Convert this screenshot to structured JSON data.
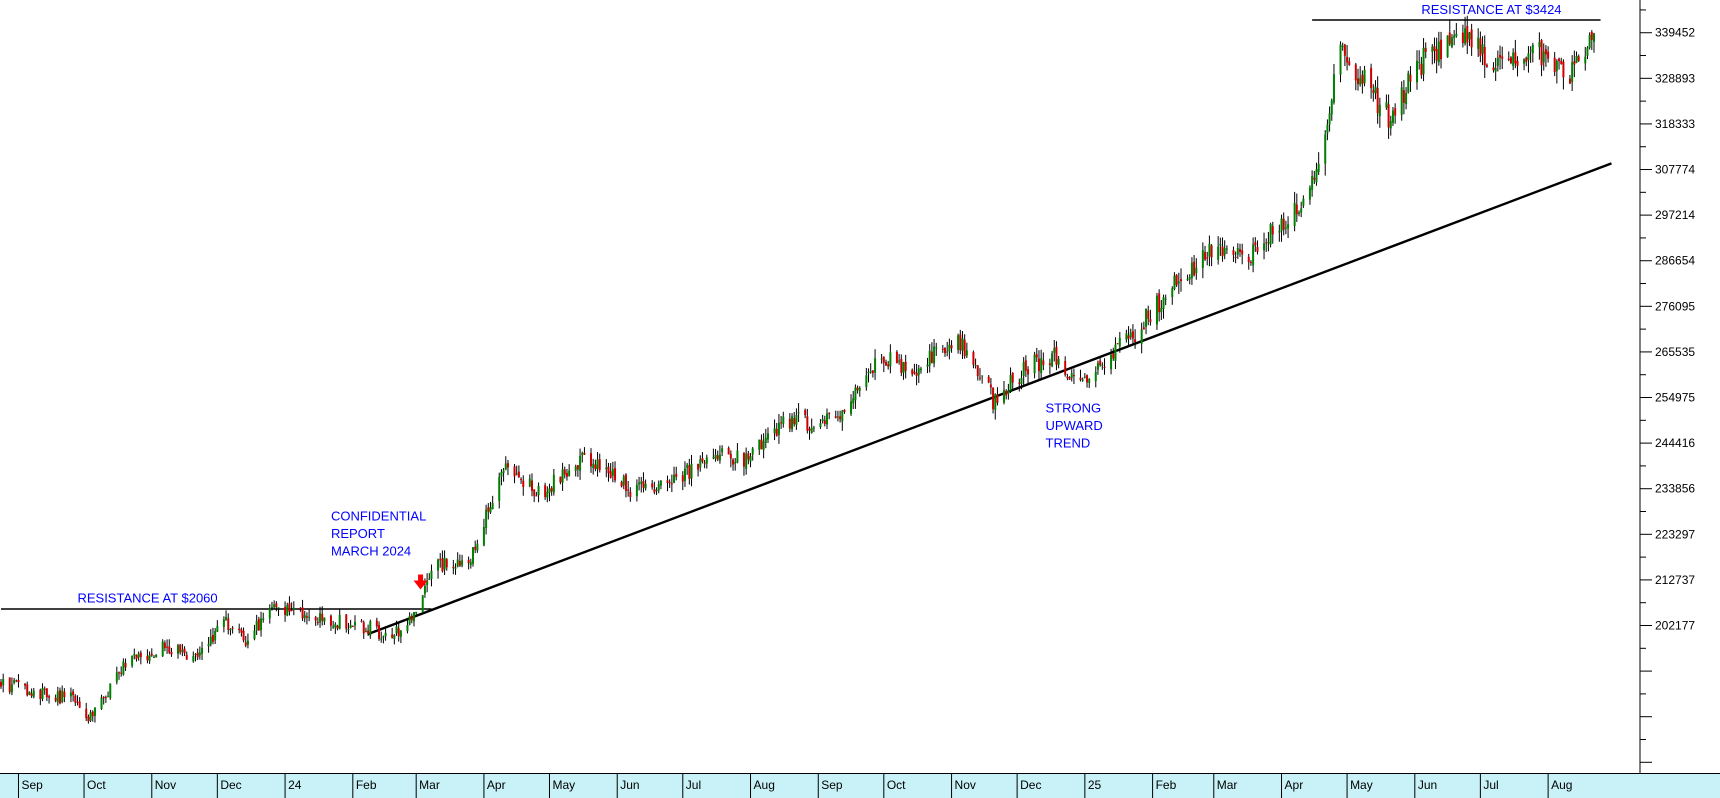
{
  "colors": {
    "up_candle": "#008000",
    "down_candle": "#cc0000",
    "wick": "#000000",
    "annotation_text": "#0000ff",
    "trendline": "#000000",
    "arrow": "#ff0000",
    "date_strip": "#c8f2f7",
    "background": "#ffffff"
  },
  "chart_data": {
    "type": "candlestick",
    "title": "",
    "xlabel": "",
    "ylabel": "",
    "ylim": [
      180000,
      345000
    ],
    "grid": false,
    "y_ticks": [
      "339452",
      "328893",
      "318333",
      "307774",
      "297214",
      "286654",
      "276095",
      "265535",
      "254975",
      "244416",
      "233856",
      "223297",
      "212737",
      "202177"
    ],
    "x_ticks": [
      "Sep",
      "Oct",
      "Nov",
      "Dec",
      "24",
      "Feb",
      "Mar",
      "Apr",
      "May",
      "Jun",
      "Jul",
      "Aug",
      "Sep",
      "Oct",
      "Nov",
      "Dec",
      "25",
      "Feb",
      "Mar",
      "Apr",
      "May",
      "Jun",
      "Jul",
      "Aug"
    ],
    "x_range": [
      "2023-08-24",
      "2025-08-22"
    ],
    "price_path": [
      [
        "2023-08-24",
        189000
      ],
      [
        "2023-09-10",
        186500
      ],
      [
        "2023-09-28",
        185000
      ],
      [
        "2023-10-04",
        180500
      ],
      [
        "2023-10-20",
        193000
      ],
      [
        "2023-11-08",
        197500
      ],
      [
        "2023-11-20",
        194000
      ],
      [
        "2023-12-04",
        203000
      ],
      [
        "2023-12-14",
        199000
      ],
      [
        "2023-12-28",
        206500
      ],
      [
        "2024-01-18",
        203500
      ],
      [
        "2024-02-04",
        202500
      ],
      [
        "2024-02-18",
        199500
      ],
      [
        "2024-02-28",
        203000
      ],
      [
        "2024-03-08",
        216000
      ],
      [
        "2024-03-25",
        217000
      ],
      [
        "2024-04-10",
        238000
      ],
      [
        "2024-04-28",
        233000
      ],
      [
        "2024-05-16",
        241000
      ],
      [
        "2024-06-08",
        233500
      ],
      [
        "2024-06-24",
        234000
      ],
      [
        "2024-07-16",
        242500
      ],
      [
        "2024-07-30",
        240500
      ],
      [
        "2024-08-18",
        249500
      ],
      [
        "2024-09-08",
        249500
      ],
      [
        "2024-09-28",
        264000
      ],
      [
        "2024-10-16",
        262000
      ],
      [
        "2024-11-03",
        269000
      ],
      [
        "2024-11-20",
        254500
      ],
      [
        "2024-12-06",
        262000
      ],
      [
        "2024-12-18",
        265000
      ],
      [
        "2024-12-30",
        257500
      ],
      [
        "2025-01-24",
        270000
      ],
      [
        "2025-02-12",
        282000
      ],
      [
        "2025-02-28",
        288500
      ],
      [
        "2025-03-16",
        287000
      ],
      [
        "2025-04-02",
        296000
      ],
      [
        "2025-04-16",
        305000
      ],
      [
        "2025-04-28",
        336000
      ],
      [
        "2025-05-20",
        320000
      ],
      [
        "2025-06-06",
        334000
      ],
      [
        "2025-06-22",
        338500
      ],
      [
        "2025-07-10",
        332000
      ],
      [
        "2025-07-26",
        336000
      ],
      [
        "2025-08-10",
        330000
      ],
      [
        "2025-08-22",
        337500
      ]
    ],
    "lines": [
      {
        "name": "resistance-2060",
        "from": [
          "2023-08-24",
          206000
        ],
        "to": [
          "2024-03-08",
          206000
        ]
      },
      {
        "name": "resistance-3424",
        "from": [
          "2025-04-15",
          342400
        ],
        "to": [
          "2025-08-25",
          342400
        ]
      },
      {
        "name": "uptrend",
        "from": [
          "2024-02-08",
          200200
        ],
        "to": [
          "2025-08-30",
          309200
        ]
      }
    ],
    "annotations": [
      {
        "name": "resistance-2060-label",
        "text": "RESISTANCE AT $2060",
        "x": "2023-09-28",
        "y": 207500
      },
      {
        "name": "resistance-3424-label",
        "text": "RESISTANCE AT $3424",
        "x": "2025-06-04",
        "y": 343800
      },
      {
        "name": "confidential-report-label",
        "lines": [
          "CONFIDENTIAL",
          "REPORT",
          "MARCH 2024"
        ],
        "x": "2024-01-22",
        "y": 226500
      },
      {
        "name": "strong-upward-trend-label",
        "lines": [
          "STRONG",
          "UPWARD",
          "TREND"
        ],
        "x": "2024-12-14",
        "y": 251500
      }
    ],
    "markers": [
      {
        "name": "report-arrow",
        "shape": "down-arrow",
        "color": "#ff0000",
        "x": "2024-03-03",
        "y": 214000
      }
    ]
  }
}
